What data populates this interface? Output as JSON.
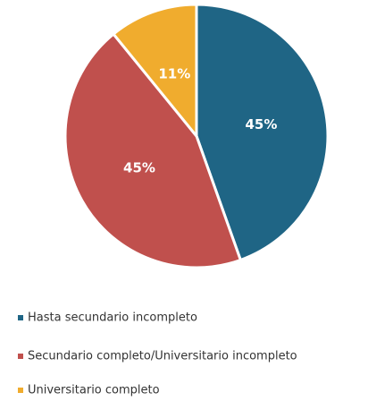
{
  "chart_data": {
    "type": "pie",
    "categories": [
      "Hasta secundario incompleto",
      "Secundario completo/Universitario incompleto",
      "Universitario completo"
    ],
    "values": [
      45,
      45,
      11
    ],
    "value_labels": [
      "45%",
      "45%",
      "11%"
    ],
    "colors": [
      "#1f6585",
      "#c0504d",
      "#f0ac2e"
    ],
    "legend": "bottom"
  }
}
